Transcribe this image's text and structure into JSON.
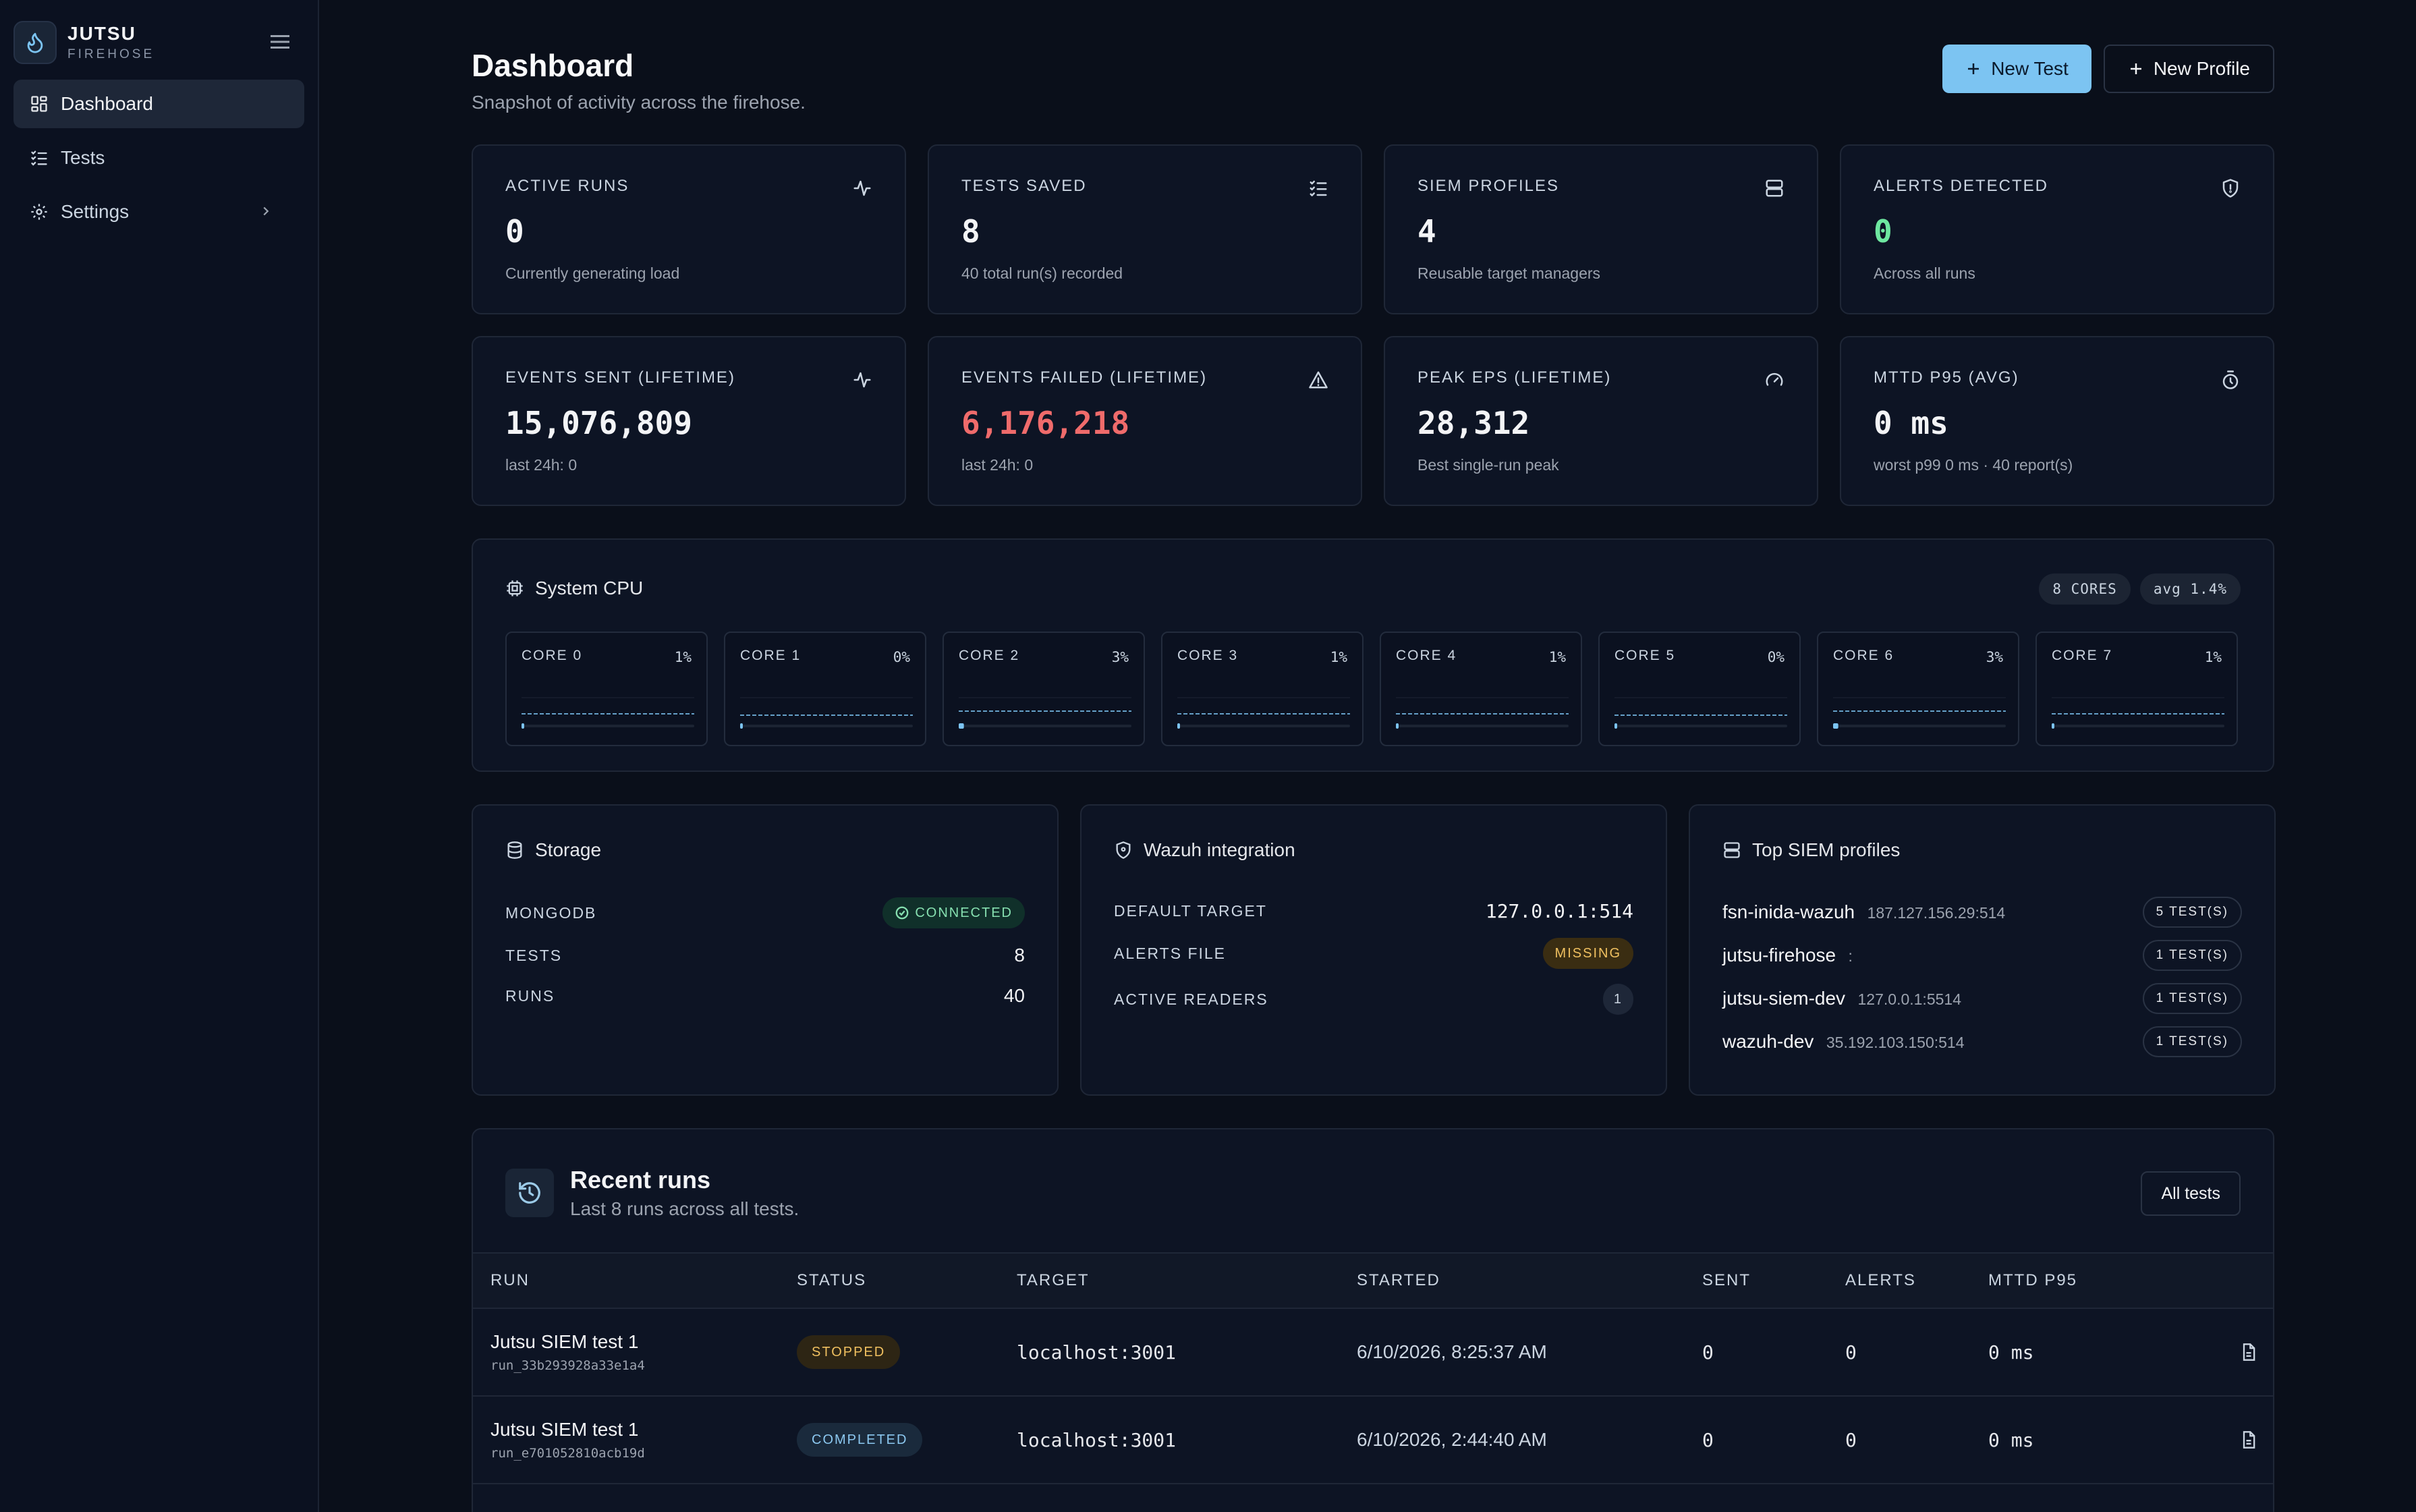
{
  "brand": {
    "title": "JUTSU",
    "subtitle": "FIREHOSE"
  },
  "sidebar": {
    "items": [
      {
        "label": "Dashboard",
        "icon": "dashboard-icon",
        "active": true
      },
      {
        "label": "Tests",
        "icon": "list-check-icon",
        "active": false
      },
      {
        "label": "Settings",
        "icon": "gear-icon",
        "active": false
      }
    ]
  },
  "header": {
    "title": "Dashboard",
    "subtitle": "Snapshot of activity across the firehose.",
    "new_test": "New Test",
    "new_profile": "New Profile"
  },
  "stats": [
    {
      "label": "ACTIVE RUNS",
      "value": "0",
      "note": "Currently generating load",
      "icon": "activity-icon",
      "color": "#f3f4f6"
    },
    {
      "label": "TESTS SAVED",
      "value": "8",
      "note": "40 total run(s) recorded",
      "icon": "list-check-icon",
      "color": "#f3f4f6"
    },
    {
      "label": "SIEM PROFILES",
      "value": "4",
      "note": "Reusable target managers",
      "icon": "server-icon",
      "color": "#f3f4f6"
    },
    {
      "label": "ALERTS DETECTED",
      "value": "0",
      "note": "Across all runs",
      "icon": "shield-icon",
      "color": "#6ee7a0"
    },
    {
      "label": "EVENTS SENT (LIFETIME)",
      "value": "15,076,809",
      "note": "last 24h: 0",
      "icon": "activity-icon",
      "color": "#f3f4f6"
    },
    {
      "label": "EVENTS FAILED (LIFETIME)",
      "value": "6,176,218",
      "note": "last 24h: 0",
      "icon": "warning-icon",
      "color": "#ef6b6b"
    },
    {
      "label": "PEAK EPS (LIFETIME)",
      "value": "28,312",
      "note": "Best single-run peak",
      "icon": "gauge-icon",
      "color": "#f3f4f6"
    },
    {
      "label": "MTTD P95 (AVG)",
      "value": "0 ms",
      "note": "worst p99 0 ms · 40 report(s)",
      "icon": "timer-icon",
      "color": "#f3f4f6"
    }
  ],
  "cpu": {
    "title": "System CPU",
    "cores_badge": "8 CORES",
    "avg_badge": "avg 1.4%",
    "cores": [
      {
        "label": "CORE 0",
        "pct": "1%",
        "level": 0.01
      },
      {
        "label": "CORE 1",
        "pct": "0%",
        "level": 0.0
      },
      {
        "label": "CORE 2",
        "pct": "3%",
        "level": 0.03
      },
      {
        "label": "CORE 3",
        "pct": "1%",
        "level": 0.01
      },
      {
        "label": "CORE 4",
        "pct": "1%",
        "level": 0.01
      },
      {
        "label": "CORE 5",
        "pct": "0%",
        "level": 0.0
      },
      {
        "label": "CORE 6",
        "pct": "3%",
        "level": 0.03
      },
      {
        "label": "CORE 7",
        "pct": "1%",
        "level": 0.01
      }
    ]
  },
  "storage": {
    "title": "Storage",
    "mongodb_label": "MONGODB",
    "mongodb_status": "CONNECTED",
    "tests_label": "TESTS",
    "tests_value": "8",
    "runs_label": "RUNS",
    "runs_value": "40"
  },
  "wazuh": {
    "title": "Wazuh integration",
    "default_target_label": "DEFAULT TARGET",
    "default_target_value": "127.0.0.1:514",
    "alerts_file_label": "ALERTS FILE",
    "alerts_file_status": "MISSING",
    "active_readers_label": "ACTIVE READERS",
    "active_readers_value": "1"
  },
  "top_siem": {
    "title": "Top SIEM profiles",
    "profiles": [
      {
        "name": "fsn-inida-wazuh",
        "addr": "187.127.156.29:514",
        "tests": "5 TEST(S)"
      },
      {
        "name": "jutsu-firehose",
        "addr": ":",
        "tests": "1 TEST(S)"
      },
      {
        "name": "jutsu-siem-dev",
        "addr": "127.0.0.1:5514",
        "tests": "1 TEST(S)"
      },
      {
        "name": "wazuh-dev",
        "addr": "35.192.103.150:514",
        "tests": "1 TEST(S)"
      }
    ]
  },
  "recent_runs": {
    "title": "Recent runs",
    "subtitle": "Last 8 runs across all tests.",
    "all_tests": "All tests",
    "columns": [
      "RUN",
      "STATUS",
      "TARGET",
      "STARTED",
      "SENT",
      "ALERTS",
      "MTTD P95"
    ],
    "rows": [
      {
        "name": "Jutsu SIEM test 1",
        "id": "run_33b293928a33e1a4",
        "status": "STOPPED",
        "target": "localhost:3001",
        "started": "6/10/2026, 8:25:37 AM",
        "sent": "0",
        "alerts": "0",
        "mttd": "0 ms"
      },
      {
        "name": "Jutsu SIEM test 1",
        "id": "run_e701052810acb19d",
        "status": "COMPLETED",
        "target": "localhost:3001",
        "started": "6/10/2026, 2:44:40 AM",
        "sent": "0",
        "alerts": "0",
        "mttd": "0 ms"
      }
    ]
  }
}
